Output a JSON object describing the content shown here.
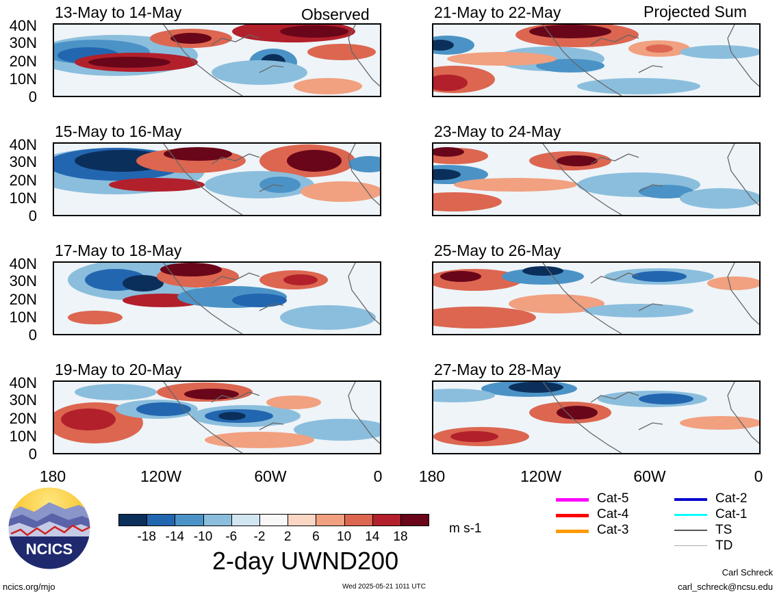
{
  "header": {
    "left_corner": "Observed",
    "right_corner": "Projected Sum"
  },
  "panels": [
    {
      "title": "13-May to 14-May",
      "column": "observed"
    },
    {
      "title": "15-May to 16-May",
      "column": "observed"
    },
    {
      "title": "17-May to 18-May",
      "column": "observed"
    },
    {
      "title": "19-May to 20-May",
      "column": "observed"
    },
    {
      "title": "21-May to 22-May",
      "column": "projected"
    },
    {
      "title": "23-May to 24-May",
      "column": "projected"
    },
    {
      "title": "25-May to 26-May",
      "column": "projected"
    },
    {
      "title": "27-May to 28-May",
      "column": "projected"
    }
  ],
  "y_ticks": [
    "40N",
    "30N",
    "20N",
    "10N",
    "0"
  ],
  "x_ticks": [
    "180",
    "120W",
    "60W",
    "0"
  ],
  "colorbar": {
    "colors": [
      "#0b2f5b",
      "#2366b0",
      "#4b93c6",
      "#8bbedd",
      "#d2e6f1",
      "#f8f8f8",
      "#fbd6c4",
      "#f1a080",
      "#dc6650",
      "#b2202b",
      "#6a0619"
    ],
    "labels": [
      "-18",
      "-14",
      "-10",
      "-6",
      "-2",
      "2",
      "6",
      "10",
      "14",
      "18"
    ],
    "units": "m s-1"
  },
  "main_title": "2-day UWND200",
  "logo_text": "NCICS",
  "legend": [
    {
      "label": "Cat-5",
      "color": "#ff00ff"
    },
    {
      "label": "Cat-4",
      "color": "#ff0000"
    },
    {
      "label": "Cat-3",
      "color": "#ff9900"
    },
    {
      "label": "Cat-2",
      "color": "#0000cc"
    },
    {
      "label": "Cat-1",
      "color": "#00ffff"
    },
    {
      "label": "TS",
      "color": "#555555"
    },
    {
      "label": "TD",
      "color": "#aaaaaa"
    }
  ],
  "footer": {
    "url": "ncics.org/mjo",
    "timestamp": "Wed 2025-05-21 1011 UTC",
    "author": "Carl Schreck",
    "email": "carl_schreck@ncsu.edu"
  }
}
